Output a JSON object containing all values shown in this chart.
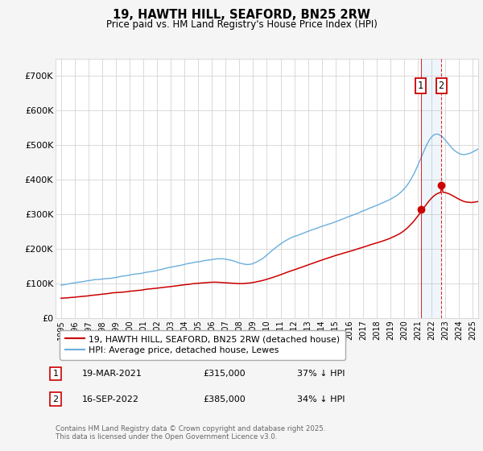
{
  "title": "19, HAWTH HILL, SEAFORD, BN25 2RW",
  "subtitle": "Price paid vs. HM Land Registry's House Price Index (HPI)",
  "ylim": [
    0,
    750000
  ],
  "yticks": [
    0,
    100000,
    200000,
    300000,
    400000,
    500000,
    600000,
    700000
  ],
  "ytick_labels": [
    "£0",
    "£100K",
    "£200K",
    "£300K",
    "£400K",
    "£500K",
    "£600K",
    "£700K"
  ],
  "xlim_start": 1994.6,
  "xlim_end": 2025.4,
  "hpi_color": "#6aaedd",
  "price_color": "#cc0000",
  "transaction1_date": 2021.21,
  "transaction1_price": 315000,
  "transaction2_date": 2022.71,
  "transaction2_price": 385000,
  "legend_line1": "19, HAWTH HILL, SEAFORD, BN25 2RW (detached house)",
  "legend_line2": "HPI: Average price, detached house, Lewes",
  "note1_label": "1",
  "note1_date": "19-MAR-2021",
  "note1_price": "£315,000",
  "note1_pct": "37% ↓ HPI",
  "note2_label": "2",
  "note2_date": "16-SEP-2022",
  "note2_price": "£385,000",
  "note2_pct": "34% ↓ HPI",
  "footer": "Contains HM Land Registry data © Crown copyright and database right 2025.\nThis data is licensed under the Open Government Licence v3.0.",
  "background_color": "#f5f5f5",
  "plot_bg_color": "#ffffff",
  "grid_color": "#cccccc"
}
